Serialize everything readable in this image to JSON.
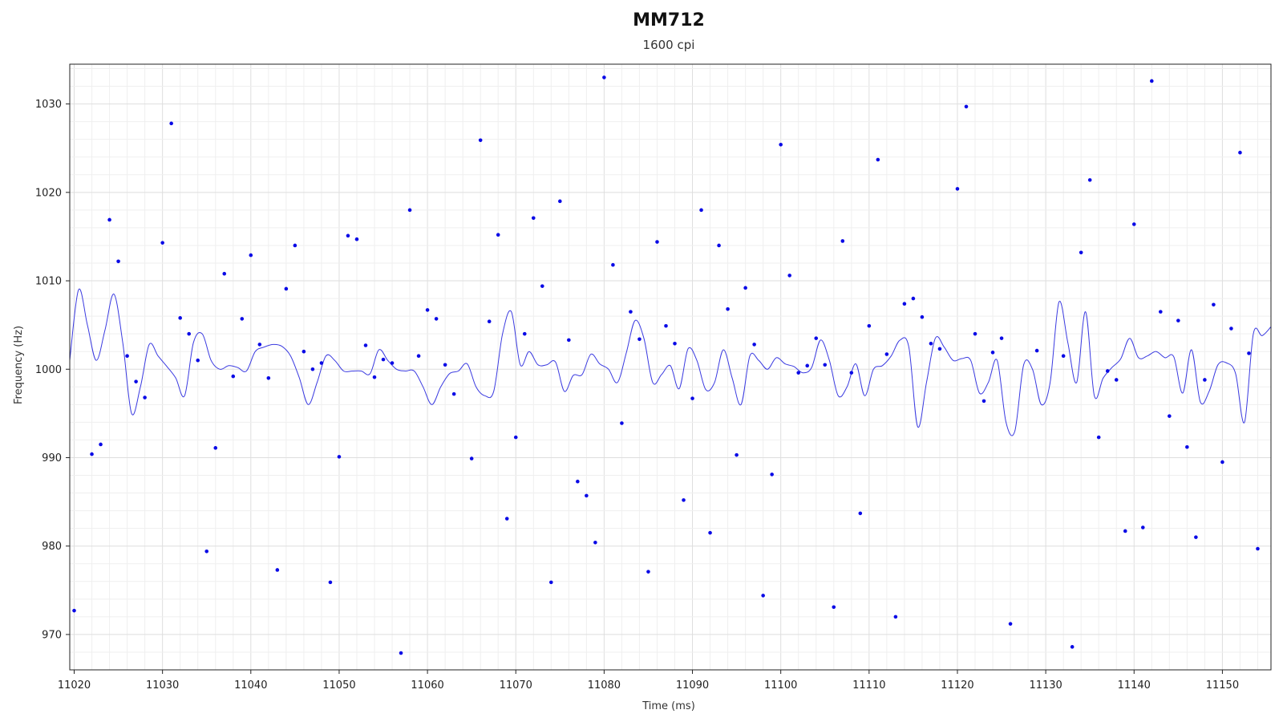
{
  "chart_data": {
    "type": "scatter",
    "title": "MM712",
    "subtitle": "1600 cpi",
    "xlabel": "Time (ms)",
    "ylabel": "Frequency (Hz)",
    "xlim": [
      11019.5,
      11155.5
    ],
    "ylim": [
      966.0,
      1034.5
    ],
    "xticks": [
      11020,
      11030,
      11040,
      11050,
      11060,
      11070,
      11080,
      11090,
      11100,
      11110,
      11120,
      11130,
      11140,
      11150
    ],
    "yticks": [
      970,
      980,
      990,
      1000,
      1010,
      1020,
      1030
    ],
    "grid": true,
    "colors": {
      "points": "#0a0ae6",
      "line": "#3a3ae0",
      "grid": "#e6e6e6",
      "axis": "#222222"
    },
    "series": [
      {
        "kind": "points",
        "x": [
          11020,
          11022,
          11023,
          11024,
          11025,
          11026,
          11027,
          11028,
          11030,
          11031,
          11032,
          11033,
          11034,
          11035,
          11036,
          11037,
          11038,
          11039,
          11040,
          11041,
          11042,
          11043,
          11044,
          11045,
          11046,
          11047,
          11048,
          11049,
          11050,
          11051,
          11052,
          11053,
          11054,
          11055,
          11056,
          11057,
          11058,
          11059,
          11060,
          11061,
          11062,
          11063,
          11065,
          11066,
          11067,
          11068,
          11069,
          11070,
          11071,
          11072,
          11073,
          11074,
          11075,
          11076,
          11077,
          11078,
          11079,
          11080,
          11081,
          11082,
          11083,
          11084,
          11085,
          11086,
          11087,
          11088,
          11089,
          11090,
          11091,
          11092,
          11093,
          11094,
          11095,
          11096,
          11097,
          11098,
          11099,
          11100,
          11101,
          11102,
          11103,
          11104,
          11105,
          11106,
          11107,
          11108,
          11109,
          11110,
          11111,
          11112,
          11113,
          11114,
          11115,
          11116,
          11117,
          11118,
          11120,
          11121,
          11122,
          11123,
          11124,
          11125,
          11126,
          11129,
          11132,
          11133,
          11134,
          11135,
          11136,
          11137,
          11138,
          11139,
          11140,
          11141,
          11142,
          11143,
          11144,
          11145,
          11146,
          11147,
          11148,
          11149,
          11150,
          11151,
          11152,
          11153,
          11154
        ],
        "y": [
          972.7,
          990.4,
          991.5,
          1016.9,
          1012.2,
          1001.5,
          998.6,
          996.8,
          1014.3,
          1027.8,
          1005.8,
          1004.0,
          1001.0,
          979.4,
          991.1,
          1010.8,
          999.2,
          1005.7,
          1012.9,
          1002.8,
          999.0,
          977.3,
          1009.1,
          1014.0,
          1002.0,
          1000.0,
          1000.7,
          975.9,
          990.1,
          1015.1,
          1014.7,
          1002.7,
          999.1,
          1001.1,
          1000.7,
          967.9,
          1018.0,
          1001.5,
          1006.7,
          1005.7,
          1000.5,
          997.2,
          989.9,
          1025.9,
          1005.4,
          1015.2,
          983.1,
          992.3,
          1004.0,
          1017.1,
          1009.4,
          975.9,
          1019.0,
          1003.3,
          987.3,
          985.7,
          980.4,
          1033.0,
          1011.8,
          993.9,
          1006.5,
          1003.4,
          977.1,
          1014.4,
          1004.9,
          1002.9,
          985.2,
          996.7,
          1018.0,
          981.5,
          1014.0,
          1006.8,
          990.3,
          1009.2,
          1002.8,
          974.4,
          988.1,
          1025.4,
          1010.6,
          999.6,
          1000.4,
          1003.5,
          1000.5,
          973.1,
          1014.5,
          999.6,
          983.7,
          1004.9,
          1023.7,
          1001.7,
          972.0,
          1007.4,
          1008.0,
          1005.9,
          1002.9,
          1002.3,
          1020.4,
          1029.7,
          1004.0,
          996.4,
          1001.9,
          1003.5,
          971.2,
          1002.1,
          1001.5,
          968.6,
          1013.2,
          1021.4,
          992.3,
          999.8,
          998.8,
          981.7,
          1016.4,
          982.1,
          1032.6,
          1006.5,
          994.7,
          1005.5,
          991.2,
          981.0,
          998.8,
          1007.3,
          989.5,
          1004.6,
          1024.5,
          1001.8,
          979.7
        ]
      },
      {
        "kind": "smoothed-line",
        "x": [
          11019.5,
          11020.5,
          11021.5,
          11022.5,
          11023.5,
          11024.5,
          11025.5,
          11026.5,
          11027.5,
          11028.5,
          11029.5,
          11030.5,
          11031.5,
          11032.5,
          11033.5,
          11034.5,
          11035.5,
          11036.5,
          11037.5,
          11038.5,
          11039.5,
          11040.5,
          11041.5,
          11042.5,
          11043.5,
          11044.5,
          11045.5,
          11046.5,
          11047.5,
          11048.5,
          11049.5,
          11050.5,
          11051.5,
          11052.5,
          11053.5,
          11054.5,
          11055.5,
          11056.5,
          11057.5,
          11058.5,
          11059.5,
          11060.5,
          11061.5,
          11062.5,
          11063.5,
          11064.5,
          11065.5,
          11066.5,
          11067.5,
          11068.5,
          11069.5,
          11070.5,
          11071.5,
          11072.5,
          11073.5,
          11074.5,
          11075.5,
          11076.5,
          11077.5,
          11078.5,
          11079.5,
          11080.5,
          11081.5,
          11082.5,
          11083.5,
          11084.5,
          11085.5,
          11086.5,
          11087.5,
          11088.5,
          11089.5,
          11090.5,
          11091.5,
          11092.5,
          11093.5,
          11094.5,
          11095.5,
          11096.5,
          11097.5,
          11098.5,
          11099.5,
          11100.5,
          11101.5,
          11102.5,
          11103.5,
          11104.5,
          11105.5,
          11106.5,
          11107.5,
          11108.5,
          11109.5,
          11110.5,
          11111.5,
          11112.5,
          11113.5,
          11114.5,
          11115.5,
          11116.5,
          11117.5,
          11118.5,
          11119.5,
          11120.5,
          11121.5,
          11122.5,
          11123.5,
          11124.5,
          11125.5,
          11126.5,
          11127.5,
          11128.5,
          11129.5,
          11130.5,
          11131.5,
          11132.5,
          11133.5,
          11134.5,
          11135.5,
          11136.5,
          11137.5,
          11138.5,
          11139.5,
          11140.5,
          11141.5,
          11142.5,
          11143.5,
          11144.5,
          11145.5,
          11146.5,
          11147.5,
          11148.5,
          11149.5,
          11150.5,
          11151.5,
          11152.5,
          11153.5,
          11154.5,
          11155.5
        ],
        "y": [
          1001.0,
          1009.0,
          1005.0,
          1001.0,
          1004.5,
          1008.5,
          1003.0,
          995.0,
          998.0,
          1002.8,
          1001.5,
          1000.3,
          999.0,
          997.0,
          1003.0,
          1004.0,
          1001.0,
          1000.0,
          1000.4,
          1000.2,
          999.8,
          1002.0,
          1002.5,
          1002.8,
          1002.6,
          1001.5,
          999.0,
          996.0,
          998.5,
          1001.5,
          1001.0,
          999.8,
          999.8,
          999.8,
          999.5,
          1002.2,
          1001.0,
          1000.0,
          999.8,
          999.8,
          998.0,
          996.0,
          998.0,
          999.5,
          999.8,
          1000.6,
          998.0,
          997.0,
          997.5,
          1004.0,
          1006.5,
          1000.5,
          1002.0,
          1000.5,
          1000.5,
          1000.8,
          997.5,
          999.3,
          999.4,
          1001.7,
          1000.6,
          1000.0,
          998.5,
          1001.8,
          1005.5,
          1003.5,
          998.5,
          999.4,
          1000.4,
          997.8,
          1002.3,
          1001.0,
          997.7,
          998.5,
          1002.2,
          999.0,
          996.0,
          1001.5,
          1001.0,
          1000.0,
          1001.3,
          1000.6,
          1000.3,
          999.6,
          1000.2,
          1003.3,
          1001.0,
          997.0,
          998.0,
          1000.6,
          997.0,
          1000.0,
          1000.4,
          1001.5,
          1003.3,
          1002.5,
          993.5,
          998.5,
          1003.5,
          1002.5,
          1001.0,
          1001.2,
          1001.0,
          997.3,
          998.5,
          1001.0,
          994.0,
          993.0,
          1000.5,
          1000.0,
          996.0,
          998.5,
          1007.6,
          1003.0,
          998.5,
          1006.5,
          997.0,
          999.0,
          1000.2,
          1001.2,
          1003.5,
          1001.3,
          1001.5,
          1002.0,
          1001.3,
          1001.4,
          997.3,
          1002.2,
          996.3,
          997.5,
          1000.5,
          1000.7,
          999.5,
          994.0,
          1004.0,
          1003.8,
          1004.8
        ]
      }
    ]
  }
}
